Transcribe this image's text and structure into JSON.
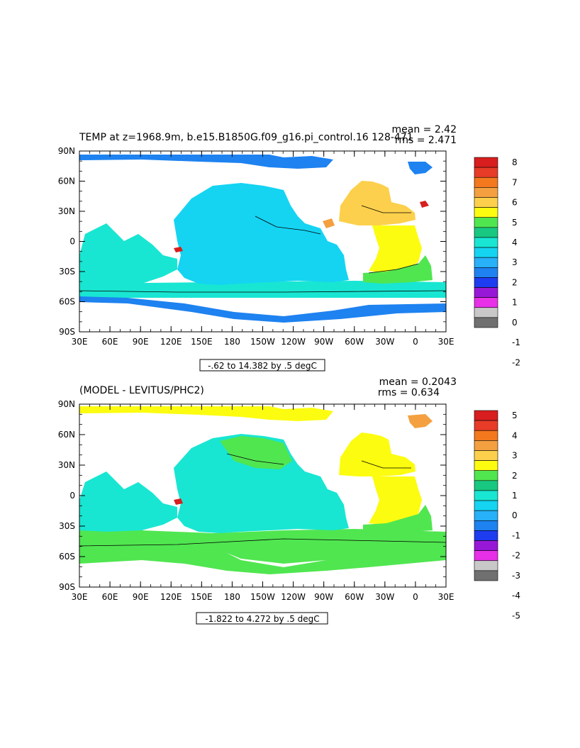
{
  "panels": [
    {
      "title": "TEMP at z=1968.9m, b.e15.B1850G.f09_g16.pi_control.16 128-471",
      "mean_text": "mean = 2.42",
      "rms_text": "rms = 2.471",
      "range_text": "-.62 to 14.382 by .5 degC",
      "colorbar_labels": [
        "8",
        "7",
        "6",
        "5",
        "4",
        "3",
        "2",
        "1",
        "0",
        "-1",
        "-2"
      ],
      "colorbar_colors": [
        "#d81e1e",
        "#e83c28",
        "#f4781e",
        "#f4a040",
        "#fcd04c",
        "#fcfc10",
        "#50e650",
        "#18c880",
        "#18e6d2",
        "#14d4f2",
        "#28b0f8",
        "#1e82f0",
        "#1e3cf0",
        "#9818d8",
        "#e830e8",
        "#c8c8c8",
        "#707070"
      ],
      "ocean": {
        "arctic": "#1e82f0",
        "pacific": "#14d4f2",
        "indian": "#18e6d2",
        "atlantic_north": "#fcd04c",
        "atlantic_tropical": "#fcfc10",
        "atlantic_south": "#50e650",
        "southern_mid": "#18e6d2",
        "southern_low": "#1e82f0"
      }
    },
    {
      "title": "(MODEL - LEVITUS/PHC2)",
      "mean_text": "mean = 0.2043",
      "rms_text": "rms = 0.634",
      "range_text": "-1.822 to 4.272 by .5 degC",
      "colorbar_labels": [
        "5",
        "4",
        "3",
        "2",
        "1",
        "0",
        "-1",
        "-2",
        "-3",
        "-4",
        "-5"
      ],
      "colorbar_colors": [
        "#d81e1e",
        "#e83c28",
        "#f4781e",
        "#f4a040",
        "#fcd04c",
        "#fcfc10",
        "#50e650",
        "#18c880",
        "#18e6d2",
        "#14d4f2",
        "#28b0f8",
        "#1e82f0",
        "#1e3cf0",
        "#9818d8",
        "#e830e8",
        "#c8c8c8",
        "#707070"
      ],
      "ocean": {
        "arctic": "#fcfc10",
        "pacific": "#18e6d2",
        "indian": "#18e6d2",
        "atlantic_north": "#fcfc10",
        "atlantic_tropical": "#fcfc10",
        "atlantic_south": "#50e650",
        "southern_mid": "#50e650",
        "southern_low": "#50e650"
      }
    }
  ],
  "lat_labels": [
    "90N",
    "60N",
    "30N",
    "0",
    "30S",
    "60S",
    "90S"
  ],
  "lon_labels": [
    "30E",
    "60E",
    "90E",
    "120E",
    "150E",
    "180",
    "150W",
    "120W",
    "90W",
    "60W",
    "30W",
    "0",
    "30E"
  ]
}
